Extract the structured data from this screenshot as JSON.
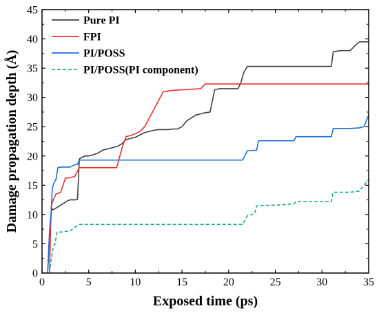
{
  "chart_data": {
    "type": "line",
    "title": "",
    "xlabel": "Exposed time (ps)",
    "ylabel": "Damage propagation depth (Å)",
    "xlim": [
      0,
      35
    ],
    "ylim": [
      0,
      45
    ],
    "xticks": [
      0,
      5,
      10,
      15,
      20,
      25,
      30,
      35
    ],
    "yticks": [
      0,
      5,
      10,
      15,
      20,
      25,
      30,
      35,
      40,
      45
    ],
    "grid": false,
    "legend_position": "top-left",
    "series": [
      {
        "name": "Pure PI",
        "color": "#404040",
        "dash": "solid",
        "x": [
          0.6,
          0.8,
          0.9,
          1.0,
          1.1,
          1.2,
          1.4,
          1.6,
          1.8,
          2.0,
          2.2,
          2.4,
          2.6,
          2.8,
          3.0,
          3.2,
          3.4,
          3.6,
          3.8,
          3.9,
          4.0,
          4.3,
          4.6,
          5.0,
          5.5,
          6.0,
          6.5,
          7.0,
          7.5,
          8.0,
          8.5,
          9.0,
          9.5,
          10.0,
          10.5,
          11.0,
          11.5,
          12.0,
          12.5,
          13.0,
          13.5,
          14.0,
          14.5,
          15.0,
          15.5,
          16.0,
          16.5,
          17.0,
          17.5,
          18.0,
          18.5,
          19.0,
          21.0,
          21.3,
          21.6,
          22.0,
          25.0,
          28.0,
          30.0,
          31.0,
          31.2,
          32.0,
          33.0,
          33.5,
          34.0,
          35.0
        ],
        "y": [
          0,
          6.0,
          9.0,
          10.5,
          11.0,
          10.8,
          11.0,
          11.2,
          11.4,
          11.6,
          11.8,
          12.0,
          12.2,
          12.4,
          12.5,
          12.5,
          12.5,
          12.5,
          12.6,
          16.0,
          19.5,
          19.8,
          20.0,
          20.0,
          20.2,
          20.5,
          21.0,
          21.2,
          21.4,
          21.6,
          22.0,
          22.8,
          23.0,
          23.2,
          23.6,
          24.0,
          24.2,
          24.4,
          24.5,
          24.5,
          24.5,
          24.6,
          24.6,
          25.0,
          26.0,
          26.5,
          27.0,
          27.2,
          27.4,
          27.5,
          31.3,
          31.5,
          31.5,
          32.5,
          34.2,
          35.3,
          35.3,
          35.3,
          35.3,
          35.3,
          37.8,
          38.0,
          38.0,
          38.8,
          39.5,
          39.5
        ]
      },
      {
        "name": "FPI",
        "color": "#e8302c",
        "dash": "solid",
        "x": [
          0.8,
          0.9,
          1.0,
          1.2,
          1.5,
          2.0,
          2.5,
          3.0,
          3.5,
          4.0,
          5.0,
          6.0,
          8.0,
          8.6,
          9.0,
          9.5,
          10.0,
          10.5,
          11.0,
          11.5,
          12.0,
          12.5,
          13.0,
          14.0,
          15.0,
          17.0,
          17.5,
          18.0,
          20.0,
          25.0,
          30.0,
          35.0
        ],
        "y": [
          0,
          6.5,
          11.5,
          12.5,
          13.5,
          13.8,
          16.2,
          16.3,
          16.5,
          18.0,
          18.0,
          18.0,
          18.0,
          21.5,
          23.3,
          23.5,
          23.8,
          24.2,
          25.0,
          26.5,
          28.0,
          29.5,
          31.0,
          31.2,
          31.3,
          31.5,
          32.3,
          32.3,
          32.3,
          32.3,
          32.3,
          32.3
        ]
      },
      {
        "name": "PI/POSS",
        "color": "#1a6fd4",
        "dash": "solid",
        "x": [
          0.6,
          0.8,
          1.0,
          1.1,
          1.3,
          1.5,
          1.7,
          2.0,
          3.0,
          3.5,
          3.8,
          4.0,
          5.0,
          8.0,
          10.0,
          15.0,
          20.0,
          21.5,
          22.0,
          23.0,
          23.2,
          24.0,
          27.0,
          27.2,
          28.0,
          31.0,
          31.2,
          33.0,
          34.0,
          34.5,
          35.0
        ],
        "y": [
          0,
          7.0,
          11.0,
          14.5,
          15.5,
          16.0,
          18.0,
          18.1,
          18.1,
          18.5,
          18.6,
          19.3,
          19.3,
          19.3,
          19.3,
          19.3,
          19.3,
          19.3,
          20.9,
          21.0,
          22.6,
          22.6,
          22.6,
          23.3,
          23.3,
          23.3,
          24.7,
          24.7,
          24.8,
          25.0,
          27.0
        ]
      },
      {
        "name": "PI/POSS(PI component)",
        "color": "#1aa884",
        "dash": "dashed",
        "x": [
          0.8,
          1.0,
          1.2,
          1.4,
          1.6,
          2.0,
          3.0,
          3.5,
          4.0,
          5.0,
          10.0,
          15.0,
          20.0,
          21.5,
          22.0,
          22.5,
          22.8,
          23.0,
          25.0,
          27.0,
          27.2,
          30.0,
          31.0,
          31.2,
          32.0,
          33.0,
          34.0,
          34.5,
          35.0
        ],
        "y": [
          0,
          2.5,
          4.5,
          5.0,
          7.0,
          7.0,
          7.2,
          7.8,
          8.3,
          8.3,
          8.3,
          8.3,
          8.3,
          8.3,
          9.8,
          10.0,
          10.2,
          11.5,
          11.6,
          11.8,
          12.2,
          12.2,
          12.2,
          13.8,
          13.8,
          13.8,
          14.0,
          15.0,
          16.0
        ]
      }
    ]
  }
}
